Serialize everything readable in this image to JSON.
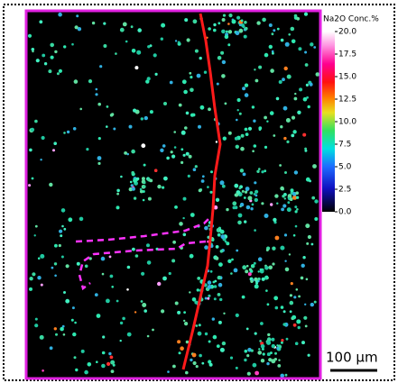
{
  "colorbar": {
    "title": "Na2O Conc.%",
    "lim": [
      0,
      20
    ],
    "ticks": [
      {
        "value": 0,
        "label": "0.0"
      },
      {
        "value": 2.5,
        "label": "2.5"
      },
      {
        "value": 5,
        "label": "5.0"
      },
      {
        "value": 7.5,
        "label": "7.5"
      },
      {
        "value": 10,
        "label": "10.0"
      },
      {
        "value": 12.5,
        "label": "12.5"
      },
      {
        "value": 15,
        "label": "15.0"
      },
      {
        "value": 17.5,
        "label": "17.5"
      },
      {
        "value": 20,
        "label": "20.0"
      }
    ]
  },
  "scale_bar": {
    "label": "100 μm"
  }
}
